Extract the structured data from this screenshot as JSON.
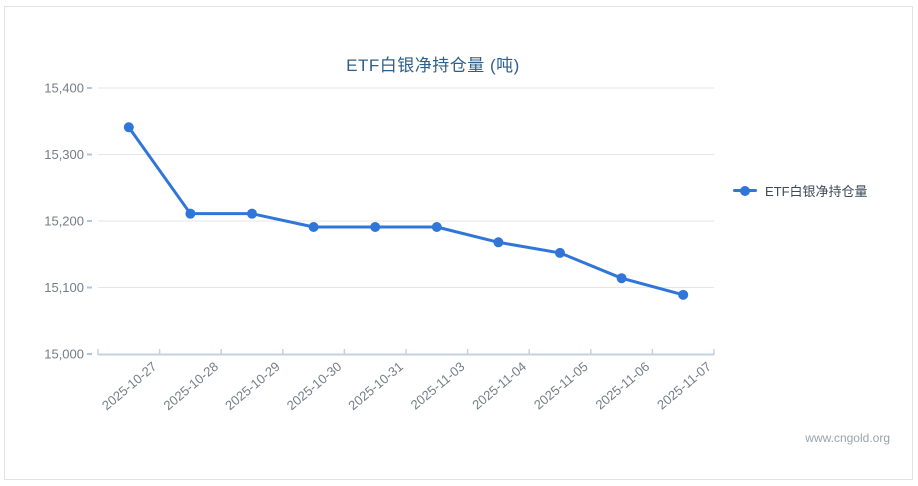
{
  "page": {
    "watermark": "www.cngold.org"
  },
  "legend": {
    "label": "ETF白银净持仓量"
  },
  "chart_data": {
    "type": "line",
    "title": "ETF白银净持仓量 (吨)",
    "categories": [
      "2025-10-27",
      "2025-10-28",
      "2025-10-29",
      "2025-10-30",
      "2025-10-31",
      "2025-11-03",
      "2025-11-04",
      "2025-11-05",
      "2025-11-06",
      "2025-11-07"
    ],
    "series": [
      {
        "name": "ETF白银净持仓量",
        "values": [
          15341,
          15211,
          15211,
          15191,
          15191,
          15191,
          15168,
          15152,
          15114,
          15089
        ]
      }
    ],
    "xlabel": "",
    "ylabel": "",
    "ylim": [
      15000,
      15400
    ],
    "yticks": [
      15000,
      15100,
      15200,
      15300,
      15400
    ],
    "ytick_labels": [
      "15,000",
      "15,100",
      "15,200",
      "15,300",
      "15,400"
    ],
    "grid": "horizontal",
    "legend_position": "right",
    "x_label_rotation": -40,
    "colors": {
      "series": "#3076d9",
      "title": "#2e5f8a",
      "axis_label": "#767d86",
      "gridline": "#e6e6e6",
      "axis_line": "#c3d2e2",
      "y_tick": "#a9c7e8",
      "legend_text": "#3d4a57",
      "watermark": "#9aa3ad"
    }
  }
}
